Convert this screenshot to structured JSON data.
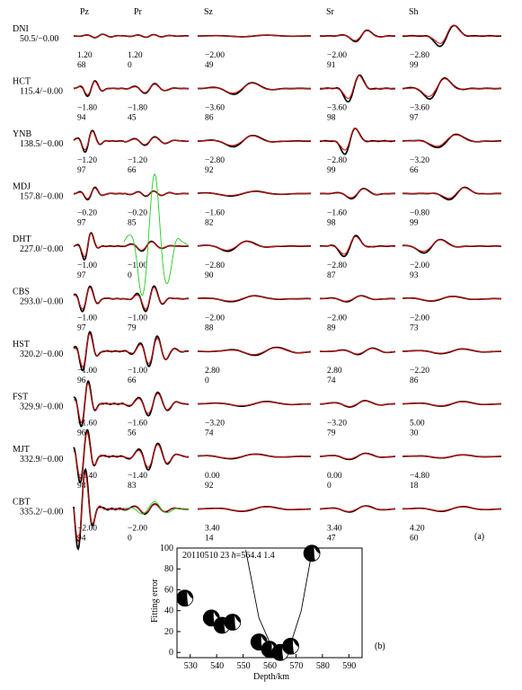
{
  "columns": [
    "Pz",
    "Pr",
    "Sz",
    "Sr",
    "Sh"
  ],
  "stations": [
    {
      "name": "DNI",
      "info": "50.5/−0.00",
      "shifts": [
        "1.20",
        "1.20",
        "−2.00",
        "−2.00",
        "−2.80"
      ],
      "cc": [
        "68",
        "0",
        "49",
        "91",
        "99"
      ]
    },
    {
      "name": "HCT",
      "info": "115.4/−0.00",
      "shifts": [
        "−1.80",
        "−1.80",
        "−3.60",
        "−3.60",
        "−3.60"
      ],
      "cc": [
        "94",
        "45",
        "86",
        "98",
        "97"
      ]
    },
    {
      "name": "YNB",
      "info": "138.5/−0.00",
      "shifts": [
        "−1.20",
        "−1.20",
        "−2.80",
        "−2.80",
        "−3.20"
      ],
      "cc": [
        "97",
        "66",
        "92",
        "99",
        "66"
      ]
    },
    {
      "name": "MDJ",
      "info": "157.8/−0.00",
      "shifts": [
        "−0.20",
        "−0.20",
        "−1.60",
        "−1.60",
        "−0.80"
      ],
      "cc": [
        "97",
        "85",
        "82",
        "98",
        "99"
      ]
    },
    {
      "name": "DHT",
      "info": "227.0/−0.00",
      "shifts": [
        "−1.00",
        "−1.00",
        "−2.80",
        "−2.80",
        "−2.00"
      ],
      "cc": [
        "97",
        "0",
        "90",
        "87",
        "93"
      ]
    },
    {
      "name": "CBS",
      "info": "293.0/−0.00",
      "shifts": [
        "−1.00",
        "−1.00",
        "−2.00",
        "−2.00",
        "−2.00"
      ],
      "cc": [
        "97",
        "79",
        "88",
        "89",
        "73"
      ]
    },
    {
      "name": "HST",
      "info": "320.2/−0.00",
      "shifts": [
        "−1.00",
        "−1.00",
        "2.80",
        "2.80",
        "−2.20"
      ],
      "cc": [
        "96",
        "66",
        "0",
        "74",
        "86"
      ]
    },
    {
      "name": "FST",
      "info": "329.9/−0.00",
      "shifts": [
        "−1.60",
        "−1.60",
        "−3.20",
        "−3.20",
        "5.00"
      ],
      "cc": [
        "96",
        "56",
        "74",
        "79",
        "30"
      ]
    },
    {
      "name": "MJT",
      "info": "332.9/−0.00",
      "shifts": [
        "−1.40",
        "−1.40",
        "0.00",
        "0.00",
        "−4.80"
      ],
      "cc": [
        "98",
        "83",
        "92",
        "0",
        "18"
      ]
    },
    {
      "name": "CBT",
      "info": "335.2/−0.00",
      "shifts": [
        "−2.00",
        "−2.00",
        "3.40",
        "3.40",
        "4.20"
      ],
      "cc": [
        "94",
        "0",
        "14",
        "47",
        "60"
      ]
    }
  ],
  "panel_a_label": "(a)",
  "panel_b_label": "(b)",
  "chart_data": {
    "type": "scatter",
    "annotation_event": "20110510 23",
    "annotation_h_label": "h",
    "annotation_h_value": "=564.4",
    "annotation_extra": "1.4",
    "xlabel": "Depth/km",
    "ylabel": "Fitting error",
    "xlim": [
      525,
      595
    ],
    "ylim": [
      -5,
      100
    ],
    "xticks": [
      530,
      540,
      550,
      560,
      570,
      580,
      590
    ],
    "yticks": [
      0,
      20,
      40,
      60,
      80,
      100
    ],
    "points": [
      {
        "depth": 528,
        "error": 52,
        "mechanism": "focal-mechanism-beachball"
      },
      {
        "depth": 538,
        "error": 33,
        "mechanism": "focal-mechanism-beachball"
      },
      {
        "depth": 542,
        "error": 26,
        "mechanism": "focal-mechanism-beachball"
      },
      {
        "depth": 546,
        "error": 29,
        "mechanism": "focal-mechanism-beachball"
      },
      {
        "depth": 556,
        "error": 10,
        "mechanism": "focal-mechanism-beachball"
      },
      {
        "depth": 560,
        "error": 3,
        "mechanism": "focal-mechanism-beachball"
      },
      {
        "depth": 564,
        "error": 0,
        "mechanism": "focal-mechanism-beachball"
      },
      {
        "depth": 568,
        "error": 6,
        "mechanism": "focal-mechanism-beachball"
      },
      {
        "depth": 576,
        "error": 95,
        "mechanism": "focal-mechanism-beachball"
      }
    ],
    "curve": [
      [
        551,
        98
      ],
      [
        556,
        33
      ],
      [
        560,
        10
      ],
      [
        564.4,
        0
      ],
      [
        568,
        8
      ],
      [
        572,
        40
      ],
      [
        576,
        96
      ]
    ]
  }
}
